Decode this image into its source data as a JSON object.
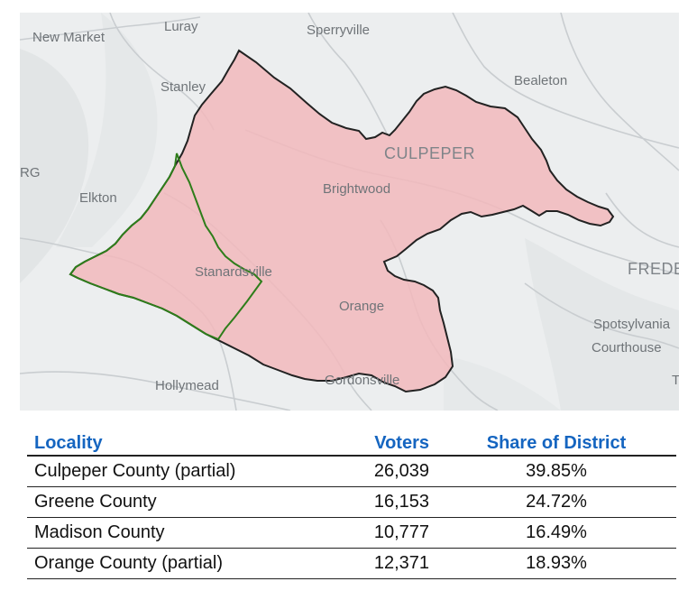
{
  "map": {
    "colors": {
      "land": "#eceeef",
      "district_fill": "#f2b8bc",
      "district_border": "#222222",
      "greene_border": "#2e7d1a",
      "roads": "#c9cdd0"
    },
    "places": {
      "new_market": "New Market",
      "luray": "Luray",
      "sperryville": "Sperryville",
      "stanley": "Stanley",
      "bealeton": "Bealeton",
      "culpeper": "CULPEPER",
      "rg": "RG",
      "elkton": "Elkton",
      "brightwood": "Brightwood",
      "stanardsville": "Stanardsville",
      "orange": "Orange",
      "frede": "FREDE",
      "spotsylvania": "Spotsylvania",
      "courthouse": "Courthouse",
      "hollymead": "Hollymead",
      "gordonsville": "Gordonsville",
      "t": "T"
    }
  },
  "table": {
    "headers": {
      "locality": "Locality",
      "voters": "Voters",
      "share": "Share of District"
    },
    "rows": [
      {
        "locality": "Culpeper County (partial)",
        "voters": "26,039",
        "share": "39.85%"
      },
      {
        "locality": "Greene County",
        "voters": "16,153",
        "share": "24.72%"
      },
      {
        "locality": "Madison County",
        "voters": "10,777",
        "share": "16.49%"
      },
      {
        "locality": "Orange County (partial)",
        "voters": "12,371",
        "share": "18.93%"
      }
    ]
  }
}
